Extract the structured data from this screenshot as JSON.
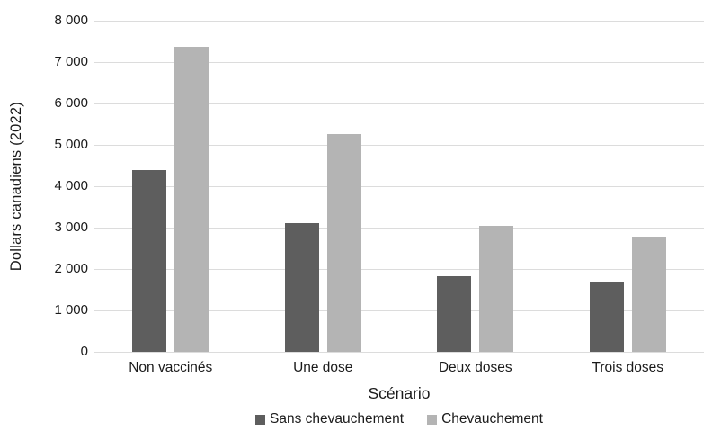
{
  "figure": {
    "background": "#ffffff",
    "text_color": "#1a1a1a",
    "gridline_color": "#dcdcdc"
  },
  "chart_data": {
    "type": "bar",
    "categories": [
      "Non vaccinés",
      "Une dose",
      "Deux doses",
      "Trois doses"
    ],
    "series": [
      {
        "name": "Sans chevauchement",
        "color": "#5e5e5e",
        "values": [
          4390,
          3120,
          1820,
          1690
        ]
      },
      {
        "name": "Chevauchement",
        "color": "#b4b4b4",
        "values": [
          7370,
          5260,
          3050,
          2790
        ]
      }
    ],
    "xlabel": "Scénario",
    "ylabel": "Dollars canadiens (2022)",
    "ylim": [
      0,
      8000
    ],
    "ytick_interval": 1000,
    "ytick_labels": [
      "8 000",
      "7 000",
      "6 000",
      "5 000",
      "4 000",
      "3 000",
      "2 000",
      "1 000",
      "0"
    ],
    "grid": true,
    "legend_position": "bottom"
  }
}
